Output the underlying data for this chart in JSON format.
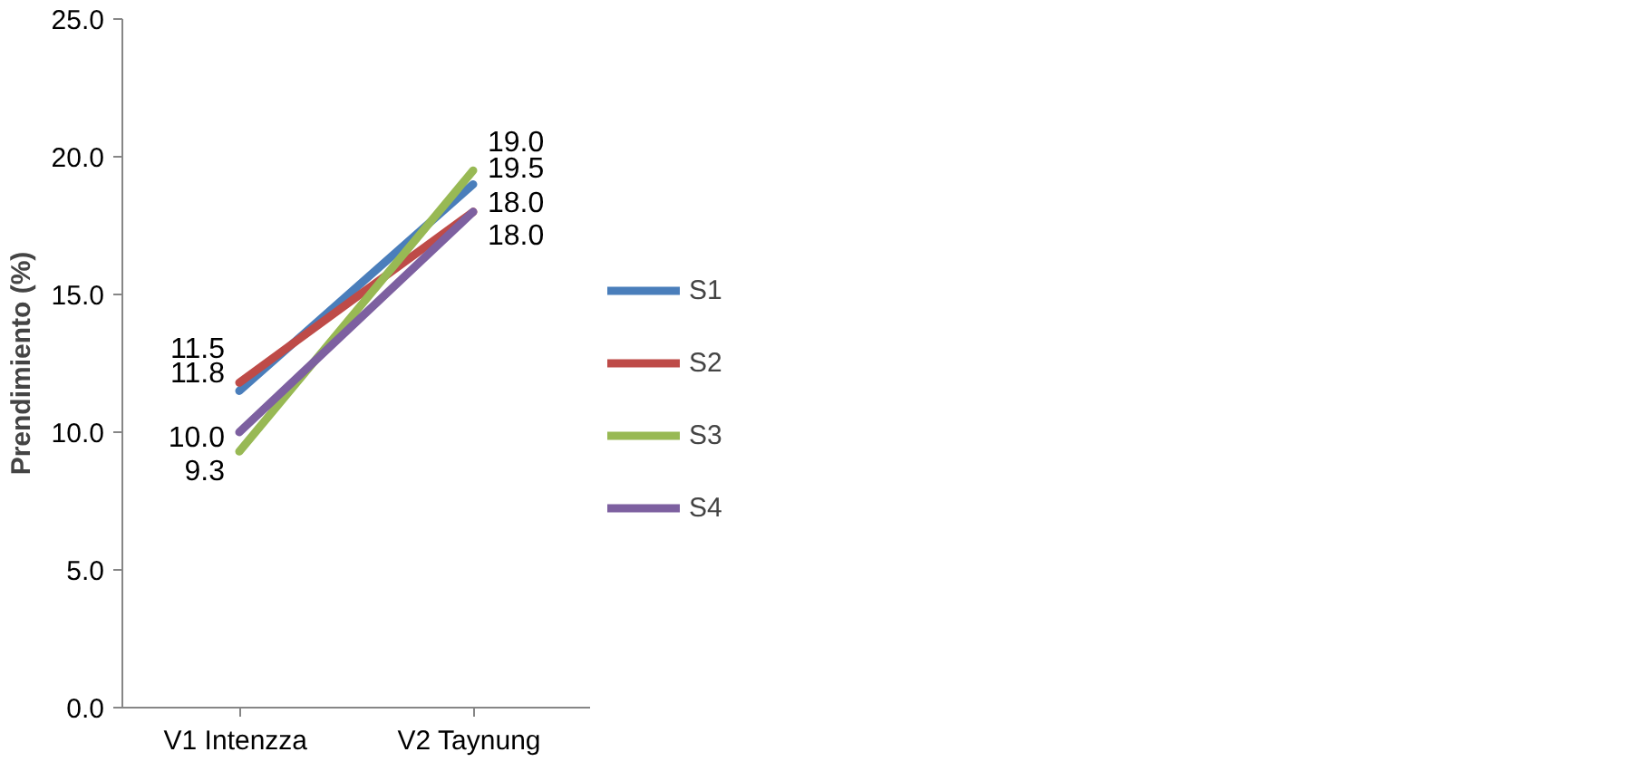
{
  "chart_data": {
    "type": "line",
    "ylabel": "Prendimiento (%)",
    "categories": [
      "V1  Intenzza",
      "V2  Taynung"
    ],
    "series": [
      {
        "name": "S1",
        "color": "#4a7ebb",
        "values": [
          11.5,
          19.0
        ],
        "value_labels": [
          "11.5",
          "19.0"
        ]
      },
      {
        "name": "S2",
        "color": "#be4b48",
        "values": [
          11.8,
          18.0
        ],
        "value_labels": [
          "11.8",
          "18.0"
        ]
      },
      {
        "name": "S3",
        "color": "#98b954",
        "values": [
          9.3,
          19.5
        ],
        "value_labels": [
          "9.3",
          "19.5"
        ]
      },
      {
        "name": "S4",
        "color": "#7d60a0",
        "values": [
          10.0,
          18.0
        ],
        "value_labels": [
          "10.0",
          "18.0"
        ]
      }
    ],
    "ylim": [
      0,
      25
    ],
    "yticks": [
      {
        "value": 0,
        "label": "0.0"
      },
      {
        "value": 5,
        "label": "5.0"
      },
      {
        "value": 10,
        "label": "10.0"
      },
      {
        "value": 15,
        "label": "15.0"
      },
      {
        "value": 20,
        "label": "20.0"
      },
      {
        "value": 25,
        "label": "25.0"
      }
    ],
    "grid": false,
    "legend": "right",
    "marker": "none",
    "line_style": "solid"
  }
}
